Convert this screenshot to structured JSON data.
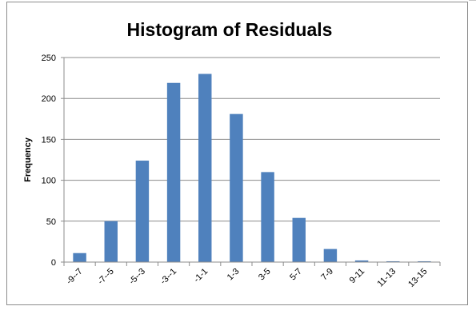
{
  "chart_data": {
    "type": "bar",
    "title": "Histogram of Residuals",
    "xlabel": "",
    "ylabel": "Frequency",
    "categories": [
      "-9--7",
      "-7--5",
      "-5--3",
      "-3--1",
      "-1-1",
      "1-3",
      "3-5",
      "5-7",
      "7-9",
      "9-11",
      "11-13",
      "13-15"
    ],
    "values": [
      11,
      50,
      124,
      219,
      230,
      181,
      110,
      54,
      16,
      2,
      1,
      1
    ],
    "ylim": [
      0,
      250
    ],
    "yticks": [
      "0",
      "50",
      "100",
      "150",
      "200",
      "250"
    ],
    "grid": true,
    "legend": "none",
    "bar_color": "#4f81bd"
  }
}
